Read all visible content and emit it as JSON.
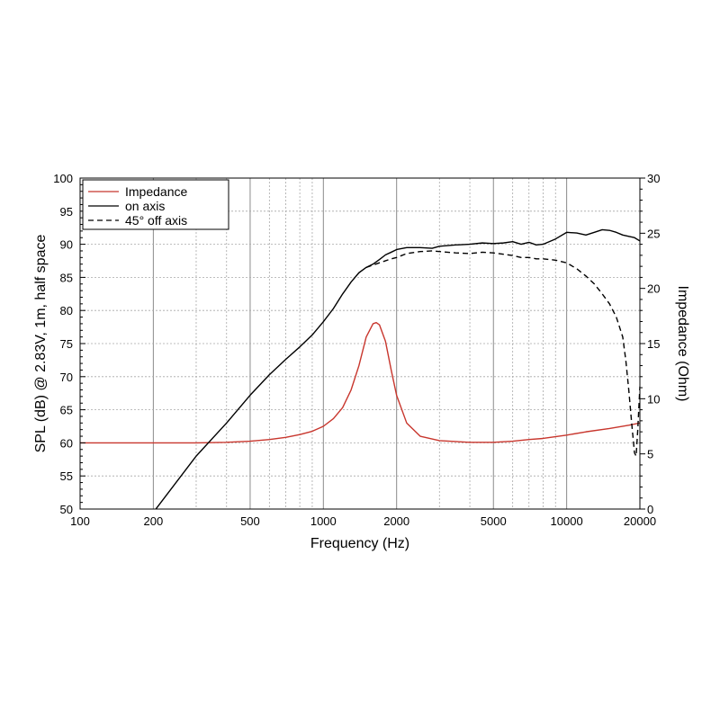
{
  "chart_data": {
    "type": "line",
    "title": "",
    "xlabel": "Frequency (Hz)",
    "ylabel_left": "SPL (dB) @ 2.83V, 1m, half space",
    "ylabel_right": "Impedance (Ohm)",
    "xscale": "log",
    "xlim": [
      100,
      20000
    ],
    "ylim_left": [
      50,
      100
    ],
    "ylim_right": [
      0,
      30
    ],
    "grid": true,
    "legend_position": "top-left",
    "x_ticks": [
      100,
      200,
      500,
      1000,
      2000,
      5000,
      10000,
      20000
    ],
    "x_tick_labels": [
      "100",
      "200",
      "500",
      "1000",
      "2000",
      "5000",
      "10000",
      "20000"
    ],
    "y_left_ticks": [
      50,
      55,
      60,
      65,
      70,
      75,
      80,
      85,
      90,
      95,
      100
    ],
    "y_left_tick_labels": [
      "50",
      "55",
      "60",
      "65",
      "70",
      "75",
      "80",
      "85",
      "90",
      "95",
      "100"
    ],
    "y_right_ticks": [
      0,
      5,
      10,
      15,
      20,
      25,
      30
    ],
    "y_right_tick_labels": [
      "0",
      "5",
      "10",
      "15",
      "20",
      "25",
      "30"
    ],
    "series": [
      {
        "name": "Impedance",
        "axis": "right",
        "color": "#c8362d",
        "dash": "solid",
        "x": [
          100,
          200,
          300,
          400,
          500,
          600,
          700,
          800,
          900,
          1000,
          1100,
          1200,
          1300,
          1400,
          1500,
          1600,
          1650,
          1700,
          1800,
          1900,
          2000,
          2200,
          2500,
          3000,
          4000,
          5000,
          6000,
          7000,
          8000,
          10000,
          12000,
          15000,
          18000,
          20000
        ],
        "values": [
          6.0,
          6.0,
          6.0,
          6.05,
          6.15,
          6.3,
          6.5,
          6.75,
          7.05,
          7.5,
          8.2,
          9.2,
          10.8,
          13.0,
          15.6,
          16.8,
          16.9,
          16.7,
          15.2,
          12.6,
          10.3,
          7.8,
          6.6,
          6.2,
          6.05,
          6.05,
          6.15,
          6.3,
          6.4,
          6.7,
          7.0,
          7.3,
          7.6,
          7.8
        ]
      },
      {
        "name": "on axis",
        "axis": "left",
        "color": "#000000",
        "dash": "solid",
        "x": [
          200,
          300,
          400,
          500,
          600,
          700,
          800,
          900,
          1000,
          1100,
          1200,
          1300,
          1400,
          1500,
          1600,
          1700,
          1800,
          1900,
          2000,
          2200,
          2500,
          2800,
          3000,
          3500,
          4000,
          4500,
          5000,
          5500,
          6000,
          6500,
          7000,
          7500,
          8000,
          9000,
          10000,
          11000,
          12000,
          13000,
          14000,
          15000,
          16000,
          17000,
          18000,
          19000,
          20000
        ],
        "values": [
          49.5,
          58.0,
          63.0,
          67.2,
          70.3,
          72.6,
          74.5,
          76.3,
          78.3,
          80.3,
          82.5,
          84.3,
          85.7,
          86.5,
          87.0,
          87.7,
          88.4,
          88.8,
          89.2,
          89.5,
          89.5,
          89.4,
          89.7,
          89.9,
          90.0,
          90.2,
          90.1,
          90.2,
          90.4,
          90.0,
          90.3,
          89.9,
          90.0,
          90.8,
          91.8,
          91.7,
          91.4,
          91.8,
          92.2,
          92.1,
          91.8,
          91.4,
          91.2,
          91.0,
          90.5
        ]
      },
      {
        "name": "45° off axis",
        "axis": "left",
        "color": "#000000",
        "dash": "dashed",
        "x": [
          1500,
          1700,
          1900,
          2000,
          2200,
          2500,
          2800,
          3000,
          3500,
          4000,
          4500,
          5000,
          5500,
          6000,
          6500,
          7000,
          7500,
          8000,
          9000,
          10000,
          11000,
          12000,
          13000,
          14000,
          15000,
          16000,
          17000,
          17500,
          18000,
          18500,
          19000,
          19300,
          19600,
          20000
        ],
        "values": [
          86.5,
          87.2,
          87.8,
          88.0,
          88.6,
          88.9,
          89.0,
          88.9,
          88.7,
          88.6,
          88.8,
          88.7,
          88.5,
          88.3,
          88.0,
          88.0,
          87.8,
          87.8,
          87.6,
          87.2,
          86.3,
          85.2,
          84.0,
          82.5,
          81.0,
          79.0,
          76.0,
          72.5,
          68.0,
          63.0,
          58.5,
          58.0,
          62.0,
          68.5
        ]
      }
    ]
  }
}
